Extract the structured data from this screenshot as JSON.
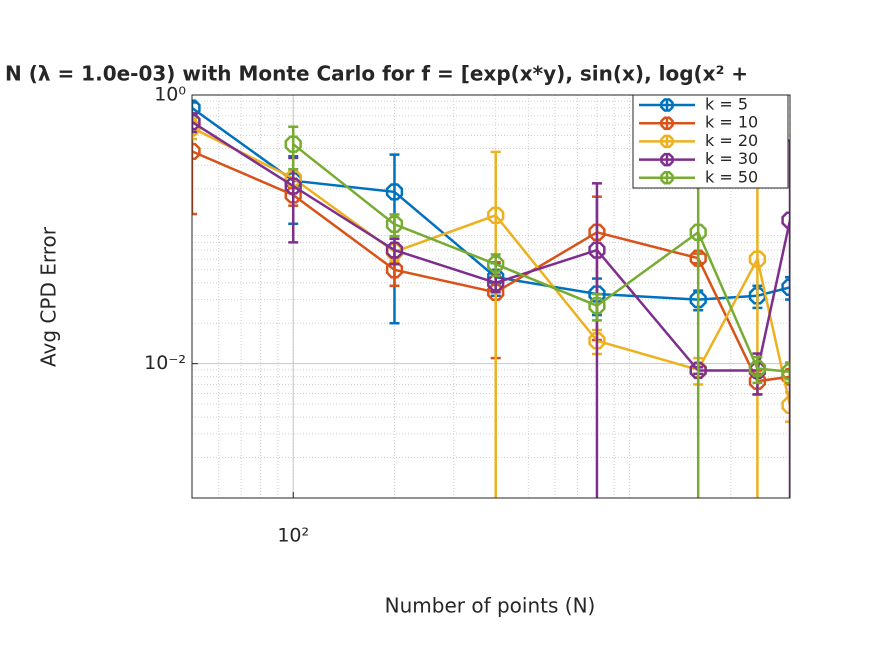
{
  "chart_data": {
    "type": "errorbar-line",
    "title": "N (λ = 1.0e-03) with Monte Carlo for f = [exp(x*y), sin(x), log(x² +",
    "x_label": "Number of points (N)",
    "y_label": "Avg CPD Error",
    "x": [
      50,
      100,
      200,
      400,
      800,
      1600,
      2400,
      3000
    ],
    "xlim": [
      50,
      3000
    ],
    "ylim": [
      0.001,
      1
    ],
    "xticks": [
      {
        "value": 100,
        "label": "10²"
      }
    ],
    "yticks": [
      {
        "value": 0.01,
        "label": "10⁻²"
      },
      {
        "value": 1,
        "label": "10⁰"
      }
    ],
    "log_x": true,
    "log_y": true,
    "grid": true,
    "minor_grid": true,
    "legend_position": "top-right",
    "series": [
      {
        "name": "k = 5",
        "color": "#0072bd",
        "values": [
          0.8,
          0.23,
          0.19,
          0.044,
          0.033,
          0.03,
          0.032,
          0.037
        ],
        "errors": [
          0.08,
          0.12,
          0.17,
          0.012,
          0.01,
          0.005,
          0.006,
          0.007
        ]
      },
      {
        "name": "k = 10",
        "color": "#d95319",
        "values": [
          0.38,
          0.18,
          0.05,
          0.034,
          0.095,
          0.061,
          0.0074,
          0.008
        ],
        "errors": [
          0.25,
          0.03,
          0.012,
          0.023,
          0.08,
          0.005,
          0.0015,
          0.001
        ]
      },
      {
        "name": "k = 20",
        "color": "#edb120",
        "values": [
          0.57,
          0.24,
          0.068,
          0.127,
          0.0148,
          0.009,
          0.06,
          0.0049
        ],
        "errors": [
          0.1,
          0.03,
          0.01,
          0.25,
          0.003,
          0.002,
          0.8,
          0.0012
        ]
      },
      {
        "name": "k = 30",
        "color": "#7e2f8e",
        "values": [
          0.63,
          0.21,
          0.07,
          0.04,
          0.07,
          0.0089,
          0.0089,
          0.117
        ],
        "errors": [
          0.1,
          0.13,
          0.015,
          0.006,
          0.15,
          0.0005,
          0.003,
          0.34
        ]
      },
      {
        "name": "k = 50",
        "color": "#77ac30",
        "values": [
          null,
          0.43,
          0.109,
          0.055,
          0.027,
          0.095,
          0.0092,
          0.0087
        ],
        "errors": [
          null,
          0.15,
          0.02,
          0.01,
          0.006,
          0.2,
          0.002,
          0.0015
        ]
      }
    ]
  }
}
